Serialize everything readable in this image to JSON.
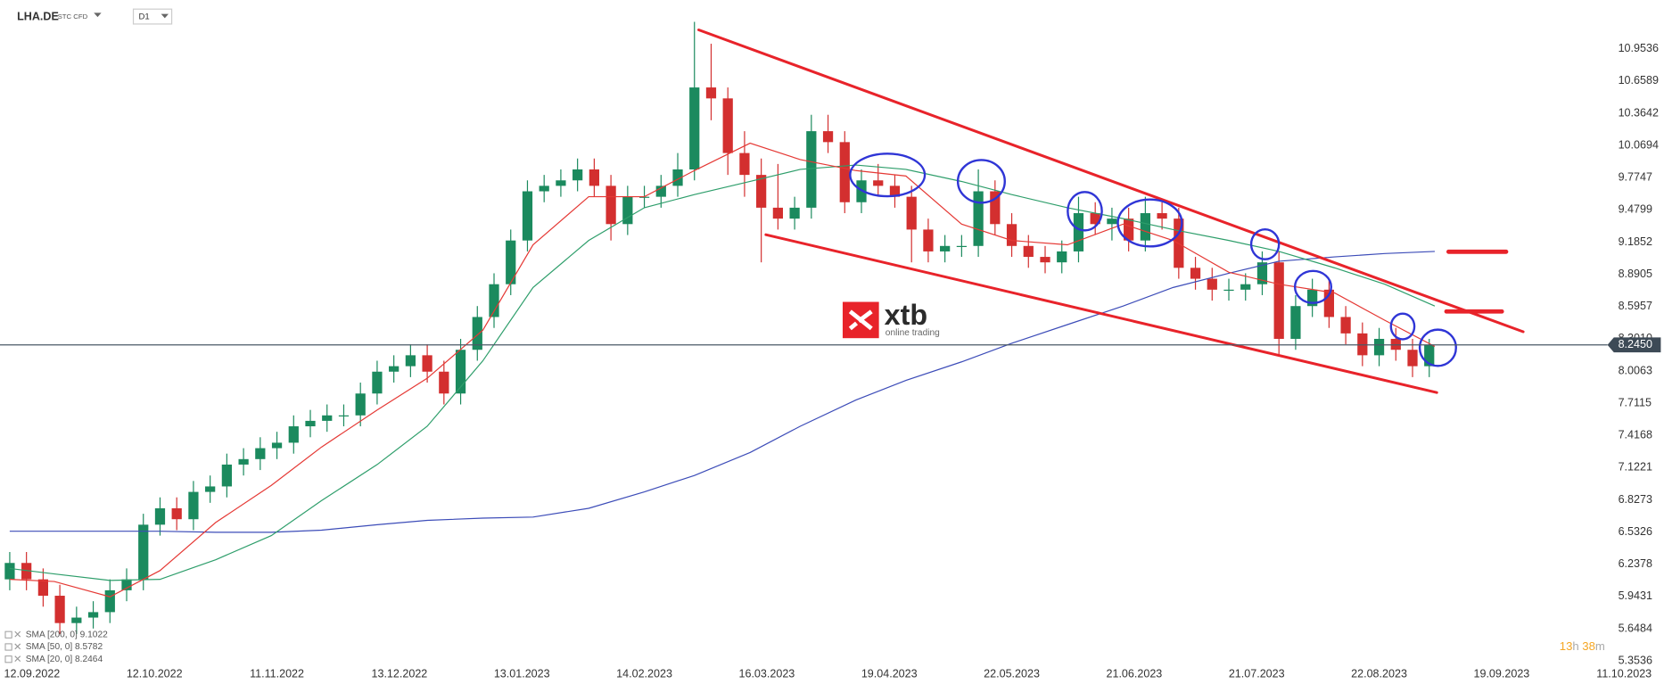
{
  "chart_data": {
    "type": "candlestick",
    "symbol": "LHA.DE",
    "instrument_type": "STC CFD",
    "interval": "D1",
    "x": [
      -4,
      -1,
      2,
      5,
      8,
      11,
      14,
      17,
      20,
      23,
      26,
      29,
      32,
      35,
      38,
      41,
      44,
      47,
      50,
      53,
      56,
      59,
      62,
      65,
      68,
      71,
      74,
      77,
      80,
      83,
      86,
      89,
      92,
      95,
      98,
      101,
      104,
      107,
      110,
      113,
      116,
      119,
      122,
      125,
      128,
      131,
      134,
      137,
      140,
      143,
      146,
      149,
      152,
      155,
      158,
      161,
      164,
      167,
      170,
      173,
      176,
      179,
      182,
      185,
      188,
      191,
      194,
      197,
      200,
      203,
      206,
      209,
      212,
      215,
      218,
      221,
      224,
      227,
      230,
      233,
      236,
      239,
      242,
      245,
      248,
      251
    ],
    "open": [
      6.1,
      6.25,
      6.1,
      5.95,
      5.7,
      5.75,
      5.8,
      6.0,
      6.1,
      6.6,
      6.75,
      6.65,
      6.9,
      6.95,
      7.15,
      7.2,
      7.3,
      7.35,
      7.5,
      7.55,
      7.6,
      7.6,
      7.8,
      8.0,
      8.05,
      8.15,
      8.0,
      7.8,
      8.2,
      8.5,
      8.8,
      9.2,
      9.65,
      9.7,
      9.75,
      9.85,
      9.7,
      9.35,
      9.6,
      9.6,
      9.7,
      9.85,
      10.6,
      10.5,
      10.0,
      9.8,
      9.5,
      9.4,
      9.5,
      10.2,
      10.1,
      9.55,
      9.75,
      9.7,
      9.6,
      9.3,
      9.1,
      9.15,
      9.15,
      9.65,
      9.35,
      9.15,
      9.05,
      9.0,
      9.1,
      9.45,
      9.35,
      9.4,
      9.2,
      9.45,
      9.4,
      8.95,
      8.85,
      8.75,
      8.75,
      8.8,
      9.0,
      8.3,
      8.6,
      8.75,
      8.5,
      8.35,
      8.15,
      8.3,
      8.2,
      8.05
    ],
    "high": [
      6.35,
      6.35,
      6.2,
      6.05,
      5.85,
      5.9,
      6.1,
      6.2,
      6.7,
      6.85,
      6.85,
      7.0,
      7.05,
      7.25,
      7.3,
      7.4,
      7.45,
      7.6,
      7.65,
      7.7,
      7.7,
      7.9,
      8.1,
      8.15,
      8.25,
      8.25,
      8.1,
      8.3,
      8.6,
      8.9,
      9.3,
      9.75,
      9.8,
      9.85,
      9.95,
      9.95,
      9.8,
      9.7,
      9.7,
      9.8,
      10.0,
      11.2,
      11.0,
      10.6,
      10.2,
      9.95,
      9.9,
      9.6,
      10.35,
      10.35,
      10.2,
      9.85,
      9.9,
      9.8,
      9.7,
      9.4,
      9.25,
      9.25,
      9.85,
      9.75,
      9.45,
      9.25,
      9.15,
      9.2,
      9.6,
      9.55,
      9.5,
      9.5,
      9.6,
      9.55,
      9.5,
      9.05,
      8.95,
      8.85,
      8.9,
      9.1,
      9.1,
      8.7,
      8.85,
      8.85,
      8.6,
      8.45,
      8.4,
      8.4,
      8.3,
      8.3
    ],
    "low": [
      6.0,
      6.0,
      5.85,
      5.6,
      5.6,
      5.65,
      5.7,
      5.9,
      6.0,
      6.5,
      6.55,
      6.55,
      6.8,
      6.85,
      7.05,
      7.1,
      7.2,
      7.25,
      7.4,
      7.45,
      7.5,
      7.5,
      7.7,
      7.9,
      7.95,
      7.9,
      7.7,
      7.7,
      8.1,
      8.4,
      8.7,
      9.1,
      9.55,
      9.6,
      9.65,
      9.6,
      9.2,
      9.25,
      9.5,
      9.5,
      9.6,
      9.75,
      10.3,
      9.8,
      9.6,
      9.0,
      9.3,
      9.3,
      9.4,
      10.0,
      9.45,
      9.45,
      9.6,
      9.5,
      9.0,
      9.0,
      9.0,
      9.05,
      9.05,
      9.25,
      9.05,
      8.95,
      8.9,
      8.9,
      9.0,
      9.25,
      9.2,
      9.1,
      9.1,
      9.3,
      8.85,
      8.75,
      8.65,
      8.65,
      8.65,
      8.7,
      8.15,
      8.2,
      8.5,
      8.4,
      8.25,
      8.05,
      8.05,
      8.1,
      7.95,
      7.95
    ],
    "close": [
      6.25,
      6.1,
      5.95,
      5.7,
      5.75,
      5.8,
      6.0,
      6.1,
      6.6,
      6.75,
      6.65,
      6.9,
      6.95,
      7.15,
      7.2,
      7.3,
      7.35,
      7.5,
      7.55,
      7.6,
      7.6,
      7.8,
      8.0,
      8.05,
      8.15,
      8.0,
      7.8,
      8.2,
      8.5,
      8.8,
      9.2,
      9.65,
      9.7,
      9.75,
      9.85,
      9.7,
      9.35,
      9.6,
      9.6,
      9.7,
      9.85,
      10.6,
      10.5,
      10.0,
      9.8,
      9.5,
      9.4,
      9.5,
      10.2,
      10.1,
      9.55,
      9.75,
      9.7,
      9.6,
      9.3,
      9.1,
      9.15,
      9.15,
      9.65,
      9.35,
      9.15,
      9.05,
      9.0,
      9.1,
      9.45,
      9.35,
      9.4,
      9.2,
      9.45,
      9.4,
      8.95,
      8.85,
      8.75,
      8.75,
      8.8,
      9.0,
      8.3,
      8.6,
      8.75,
      8.5,
      8.35,
      8.15,
      8.3,
      8.2,
      8.05,
      8.245
    ],
    "up_color": "#1b8a5e",
    "down_color": "#d32f2f",
    "indicators": [
      {
        "name": "SMA [200, 0] 9.1022",
        "color": "#3c4cb8",
        "x": [
          -4,
          4,
          14,
          23,
          33,
          43,
          52,
          62,
          71,
          81,
          90,
          100,
          110,
          119,
          129,
          138,
          148,
          157,
          167,
          176,
          186,
          196,
          205,
          215,
          224,
          234,
          243,
          252
        ],
        "values": [
          6.54,
          6.54,
          6.54,
          6.54,
          6.53,
          6.53,
          6.55,
          6.6,
          6.64,
          6.66,
          6.67,
          6.75,
          6.9,
          7.05,
          7.26,
          7.5,
          7.74,
          7.92,
          8.09,
          8.26,
          8.43,
          8.6,
          8.77,
          8.9,
          9.01,
          9.05,
          9.08,
          9.1
        ]
      },
      {
        "name": "SMA [50, 0] 8.5782",
        "color": "#2e9e6b",
        "x": [
          -4,
          4,
          14,
          23,
          33,
          43,
          52,
          62,
          71,
          81,
          90,
          100,
          110,
          119,
          129,
          138,
          148,
          157,
          167,
          176,
          186,
          196,
          205,
          215,
          224,
          234,
          243,
          252
        ],
        "values": [
          6.2,
          6.15,
          6.09,
          6.1,
          6.28,
          6.5,
          6.82,
          7.15,
          7.5,
          8.1,
          8.77,
          9.2,
          9.5,
          9.62,
          9.74,
          9.85,
          9.89,
          9.85,
          9.74,
          9.62,
          9.5,
          9.4,
          9.3,
          9.2,
          9.1,
          8.95,
          8.8,
          8.6
        ]
      },
      {
        "name": "SMA [20, 0] 8.2464",
        "color": "#e53935",
        "x": [
          -4,
          4,
          14,
          23,
          33,
          43,
          52,
          62,
          71,
          81,
          90,
          100,
          110,
          119,
          129,
          138,
          148,
          157,
          167,
          176,
          186,
          196,
          205,
          215,
          224,
          234,
          243,
          252
        ],
        "values": [
          6.1,
          6.08,
          5.94,
          6.18,
          6.62,
          6.96,
          7.31,
          7.65,
          7.94,
          8.38,
          9.16,
          9.6,
          9.6,
          9.84,
          10.09,
          9.94,
          9.84,
          9.79,
          9.35,
          9.2,
          9.16,
          9.35,
          9.2,
          8.91,
          8.8,
          8.72,
          8.47,
          8.23
        ]
      }
    ],
    "xlim": [
      -5.75,
      288
    ],
    "xticks": [
      {
        "value": 0,
        "label": "12.09.2022"
      },
      {
        "value": 22,
        "label": "12.10.2022"
      },
      {
        "value": 44,
        "label": "11.11.2022"
      },
      {
        "value": 66,
        "label": "13.12.2022"
      },
      {
        "value": 88,
        "label": "13.01.2023"
      },
      {
        "value": 110,
        "label": "14.02.2023"
      },
      {
        "value": 132,
        "label": "16.03.2023"
      },
      {
        "value": 154,
        "label": "19.04.2023"
      },
      {
        "value": 176,
        "label": "22.05.2023"
      },
      {
        "value": 198,
        "label": "21.06.2023"
      },
      {
        "value": 220,
        "label": "21.07.2023"
      },
      {
        "value": 242,
        "label": "22.08.2023"
      },
      {
        "value": 264,
        "label": "19.09.2023"
      },
      {
        "value": 286,
        "label": "11.10.2023"
      }
    ],
    "ylim": [
      5.33,
      11.4
    ],
    "yticks": [
      10.9536,
      10.6589,
      10.3642,
      10.0694,
      9.7747,
      9.4799,
      9.1852,
      8.8905,
      8.5957,
      {
        "value": 8.301,
        "label": "8.3010"
      },
      8.0063,
      7.7115,
      7.4168,
      7.1221,
      6.8273,
      6.5326,
      6.2378,
      5.9431,
      5.6484,
      5.3536
    ],
    "current_price": {
      "value": 8.245,
      "label": "8.2450"
    },
    "countdown": [
      "13",
      "h",
      "38",
      "m"
    ]
  },
  "logo": {
    "name": "xtb",
    "tagline": "online trading"
  }
}
